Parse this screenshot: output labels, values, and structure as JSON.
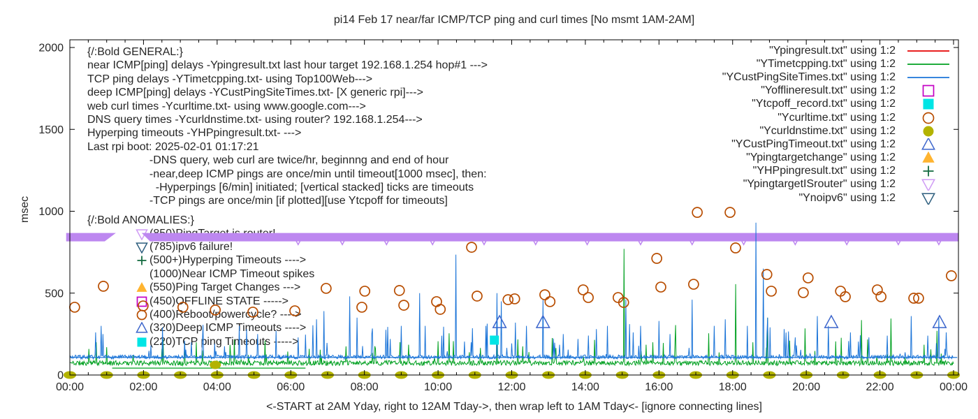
{
  "title": "pi14 Feb 17  near/far ICMP/TCP ping and curl times [No msmt 1AM-2AM]",
  "axes": {
    "ylabel": "msec",
    "xlabel": "<-START at 2AM Yday, right to 12AM Tday->, then wrap left to 1AM Tday<- [ignore connecting lines]",
    "ylim": [
      0,
      2000
    ],
    "yticks": [
      0,
      500,
      1000,
      1500,
      2000
    ],
    "xticks": [
      "00:00",
      "02:00",
      "04:00",
      "06:00",
      "08:00",
      "10:00",
      "12:00",
      "14:00",
      "16:00",
      "18:00",
      "20:00",
      "22:00",
      "00:00"
    ],
    "xlim_hours": [
      0,
      24
    ]
  },
  "legend": [
    {
      "label": "\"Ypingresult.txt\" using 1:2",
      "marker": "line",
      "color": "#e60000"
    },
    {
      "label": "\"YTimetcpping.txt\" using 1:2",
      "marker": "line",
      "color": "#00a020"
    },
    {
      "label": "\"YCustPingSiteTimes.txt\" using 1:2",
      "marker": "line",
      "color": "#1b74d8"
    },
    {
      "label": "\"Yofflineresult.txt\" using 1:2",
      "marker": "open-square",
      "color": "#c400c4"
    },
    {
      "label": "\"Ytcpoff_record.txt\" using 1:2",
      "marker": "filled-square",
      "color": "#00e5e5"
    },
    {
      "label": "\"Ycurltime.txt\" using 1:2",
      "marker": "open-circle",
      "color": "#b84d00"
    },
    {
      "label": "\"Ycurldnstime.txt\" using 1:2",
      "marker": "filled-circle",
      "color": "#b3b300"
    },
    {
      "label": "\"YCustPingTimeout.txt\" using 1:2",
      "marker": "open-triangle-up",
      "color": "#3d66cc"
    },
    {
      "label": "\"Ypingtargetchange\" using 1:2",
      "marker": "filled-triangle-up",
      "color": "#ffb430"
    },
    {
      "label": "\"YHPpingresult.txt\" using 1:2",
      "marker": "plus",
      "color": "#156b42"
    },
    {
      "label": "\"YpingtargetISrouter\" using 1:2",
      "marker": "open-triangle-down",
      "color": "#cf9bf5"
    },
    {
      "label": "\"Ynoipv6\" using 1:2",
      "marker": "open-triangle-down",
      "color": "#2d5e7e"
    }
  ],
  "notes_general": [
    "{/:Bold GENERAL:}",
    "near ICMP[ping] delays -Ypingresult.txt last hour target 192.168.1.254 hop#1 --->",
    "TCP ping delays -YTimetcpping.txt- using Top100Web--->",
    "deep ICMP[ping] delays -YCustPingSiteTimes.txt- [X generic rpi]--->",
    "web curl times -Ycurltime.txt- using www.google.com--->",
    "DNS query times -Ycurldnstime.txt- using router? 192.168.1.254--->",
    "Hyperping timeouts -YHPpingresult.txt- --->",
    "Last rpi boot: 2025-02-01 01:17:21",
    "                    -DNS query, web curl are twice/hr, beginnng and end of hour",
    "                    -near,deep ICMP pings are once/min until timeout[1000 msec], then:",
    "                      -Hyperpings [6/min] initiated; [vertical stacked] ticks are timeouts",
    "                    -TCP pings are once/min [if plotted][use Ytcpoff for timeouts]"
  ],
  "anomalies_header": "{/:Bold ANOMALIES:}",
  "notes_anomalies": [
    {
      "marker": "open-triangle-down",
      "color": "#cf9bf5",
      "text": "(850)PingTarget is router!"
    },
    {
      "marker": "open-triangle-down",
      "color": "#2d5e7e",
      "text": "(785)ipv6 failure!"
    },
    {
      "marker": "plus",
      "color": "#156b42",
      "text": "(500+)Hyperping Timeouts ---->"
    },
    {
      "marker": "none",
      "color": "",
      "text": "(1000)Near ICMP Timeout spikes"
    },
    {
      "marker": "filled-triangle-up",
      "color": "#ffb430",
      "text": "(550)Ping Target Changes --->"
    },
    {
      "marker": "open-square",
      "color": "#c400c4",
      "text": "(450)OFFLINE STATE ----->"
    },
    {
      "marker": "open-circle",
      "color": "#b84d00",
      "text": "(400)Reboot/powercycle? ---->"
    },
    {
      "marker": "open-triangle-up",
      "color": "#3d66cc",
      "text": "(320)Deep ICMP Timeouts ---->"
    },
    {
      "marker": "filled-square",
      "color": "#00e5e5",
      "text": "(220)TCP ping Timeouts ----->"
    }
  ],
  "chart_data": {
    "type": "line",
    "x_unit": "hours_0_to_24",
    "y_unit": "msec",
    "series": [
      {
        "name": "Ypingresult.txt",
        "style": "line",
        "color": "#e60000",
        "visible_in_plot": false,
        "points": []
      },
      {
        "name": "YTimetcpping.txt",
        "style": "noisy-line",
        "color": "#00a020",
        "baseline_msec": 68,
        "connector_segments": [
          [
            1.15,
            42,
            6.4,
            42
          ]
        ],
        "spikes": [
          [
            1.0,
            170
          ],
          [
            2.5,
            160
          ],
          [
            3.6,
            150
          ],
          [
            4.35,
            185
          ],
          [
            5.3,
            210
          ],
          [
            6.5,
            160
          ],
          [
            7.5,
            175
          ],
          [
            8.3,
            160
          ],
          [
            9.2,
            185
          ],
          [
            10.3,
            255
          ],
          [
            11.15,
            165
          ],
          [
            12.3,
            175
          ],
          [
            13.2,
            165
          ],
          [
            14.25,
            215
          ],
          [
            15.05,
            770
          ],
          [
            15.65,
            185
          ],
          [
            16.45,
            305
          ],
          [
            17.35,
            255
          ],
          [
            18.08,
            555
          ],
          [
            18.55,
            200
          ],
          [
            18.95,
            350
          ],
          [
            19.55,
            210
          ],
          [
            19.96,
            285
          ],
          [
            20.8,
            205
          ],
          [
            21.5,
            335
          ],
          [
            22.3,
            345
          ],
          [
            23.2,
            185
          ],
          [
            23.55,
            270
          ]
        ]
      },
      {
        "name": "YCustPingSiteTimes.txt",
        "style": "noisy-line",
        "color": "#1b74d8",
        "baseline_msec": 106,
        "connector_segments": [
          [
            0,
            107,
            24.1,
            107
          ]
        ],
        "spikes": [
          [
            0.7,
            260
          ],
          [
            0.85,
            300
          ],
          [
            0.9,
            250
          ],
          [
            2.2,
            180
          ],
          [
            3.3,
            200
          ],
          [
            4.6,
            300
          ],
          [
            4.8,
            280
          ],
          [
            5.1,
            250
          ],
          [
            5.6,
            270
          ],
          [
            6.2,
            230
          ],
          [
            6.7,
            340
          ],
          [
            6.9,
            390
          ],
          [
            7.6,
            480
          ],
          [
            7.8,
            350
          ],
          [
            8.2,
            250
          ],
          [
            8.7,
            220
          ],
          [
            9.0,
            300
          ],
          [
            9.5,
            500
          ],
          [
            9.65,
            300
          ],
          [
            10.1,
            240
          ],
          [
            10.49,
            735
          ],
          [
            10.9,
            200
          ],
          [
            11.3,
            300
          ],
          [
            11.6,
            500
          ],
          [
            11.72,
            450
          ],
          [
            12.1,
            320
          ],
          [
            12.4,
            300
          ],
          [
            12.85,
            460
          ],
          [
            13.4,
            250
          ],
          [
            13.8,
            220
          ],
          [
            14.3,
            280
          ],
          [
            14.6,
            300
          ],
          [
            15.1,
            460
          ],
          [
            15.3,
            260
          ],
          [
            15.5,
            300
          ],
          [
            16.0,
            330
          ],
          [
            16.3,
            250
          ],
          [
            16.9,
            460
          ],
          [
            17.5,
            300
          ],
          [
            17.8,
            340
          ],
          [
            18.4,
            300
          ],
          [
            18.63,
            930
          ],
          [
            18.84,
            650
          ],
          [
            18.95,
            350
          ],
          [
            19.4,
            280
          ],
          [
            19.7,
            230
          ],
          [
            20.3,
            360
          ],
          [
            20.6,
            300
          ],
          [
            21.2,
            260
          ],
          [
            21.7,
            230
          ],
          [
            22.2,
            240
          ],
          [
            22.85,
            360
          ],
          [
            23.3,
            240
          ],
          [
            23.6,
            350
          ],
          [
            23.8,
            260
          ]
        ]
      },
      {
        "name": "Yofflineresult.txt",
        "style": "open-square",
        "color": "#c400c4",
        "points": []
      },
      {
        "name": "Ytcpoff_record.txt",
        "style": "filled-square",
        "color": "#00e5e5",
        "points": [
          [
            11.53,
            213
          ]
        ]
      },
      {
        "name": "Ycurltime.txt",
        "style": "open-circle",
        "color": "#b84d00",
        "points": [
          [
            0.13,
            414
          ],
          [
            0.91,
            542
          ],
          [
            1.99,
            422
          ],
          [
            3.07,
            414
          ],
          [
            3.95,
            397
          ],
          [
            4.97,
            384
          ],
          [
            6.11,
            392
          ],
          [
            6.96,
            529
          ],
          [
            7.93,
            414
          ],
          [
            8.01,
            512
          ],
          [
            8.95,
            516
          ],
          [
            9.07,
            426
          ],
          [
            9.96,
            448
          ],
          [
            10.06,
            401
          ],
          [
            10.91,
            780
          ],
          [
            11.06,
            482
          ],
          [
            11.9,
            460
          ],
          [
            12.08,
            465
          ],
          [
            12.9,
            490
          ],
          [
            13.04,
            448
          ],
          [
            13.94,
            520
          ],
          [
            14.08,
            473
          ],
          [
            14.89,
            473
          ],
          [
            15.04,
            443
          ],
          [
            15.94,
            712
          ],
          [
            16.05,
            537
          ],
          [
            16.94,
            554
          ],
          [
            17.04,
            993
          ],
          [
            17.93,
            993
          ],
          [
            18.08,
            776
          ],
          [
            18.93,
            614
          ],
          [
            19.05,
            512
          ],
          [
            19.92,
            503
          ],
          [
            20.05,
            593
          ],
          [
            20.93,
            512
          ],
          [
            21.06,
            478
          ],
          [
            21.93,
            520
          ],
          [
            22.03,
            478
          ],
          [
            22.92,
            469
          ],
          [
            23.05,
            469
          ],
          [
            23.94,
            606
          ]
        ]
      },
      {
        "name": "Ycurldnstime.txt",
        "style": "filled-circle",
        "color": "#b3b300",
        "hourly_zero_dots": true,
        "points": [
          [
            3.95,
            62
          ]
        ]
      },
      {
        "name": "YCustPingTimeout.txt",
        "style": "open-triangle-up",
        "color": "#3d66cc",
        "points": [
          [
            11.67,
            320
          ],
          [
            12.85,
            320
          ],
          [
            20.68,
            320
          ],
          [
            23.62,
            320
          ]
        ]
      },
      {
        "name": "Ypingtargetchange",
        "style": "filled-triangle-up",
        "color": "#ffb430",
        "points": []
      },
      {
        "name": "YHPpingresult.txt",
        "style": "plus",
        "color": "#156b42",
        "points": []
      },
      {
        "name": "YpingtargetISrouter",
        "style": "band",
        "color": "#bd87f0",
        "band_msec": 842,
        "segments_hours": [
          [
            -0.1,
            1.25
          ],
          [
            1.95,
            24.13
          ]
        ],
        "scatter_below": [
          [
            6.2,
            820
          ],
          [
            7.4,
            820
          ],
          [
            8.6,
            820
          ],
          [
            9.85,
            820
          ],
          [
            11.25,
            820
          ],
          [
            12.65,
            820
          ],
          [
            14.05,
            820
          ],
          [
            15.5,
            820
          ],
          [
            16.9,
            820
          ],
          [
            18.3,
            820
          ],
          [
            19.7,
            820
          ],
          [
            21.1,
            820
          ],
          [
            22.5,
            820
          ],
          [
            23.6,
            820
          ]
        ]
      },
      {
        "name": "Ynoipv6",
        "style": "open-triangle-down",
        "color": "#2d5e7e",
        "points": []
      }
    ]
  }
}
